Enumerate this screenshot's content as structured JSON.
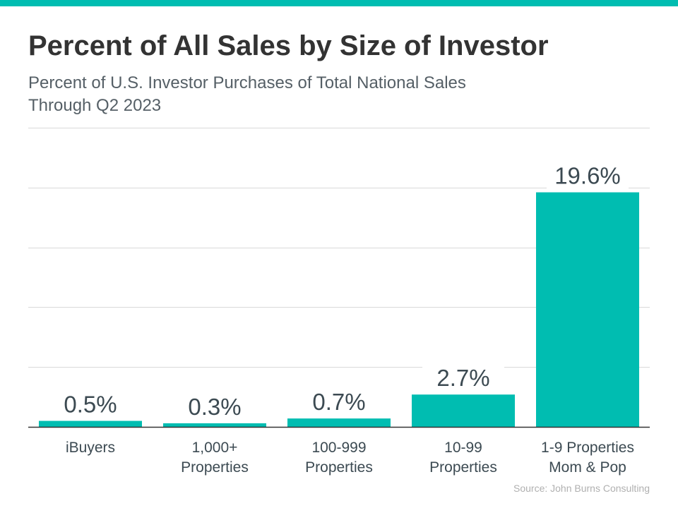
{
  "colors": {
    "accent": "#00bdb1",
    "title": "#333333",
    "subtitle": "#555f66",
    "text": "#3c4a52",
    "grid": "#d9d9d9",
    "source": "#b0b0b0"
  },
  "header": {
    "title": "Percent of All Sales by Size of Investor",
    "subtitle_line1": "Percent of U.S. Investor Purchases of Total National Sales",
    "subtitle_line2": "Through Q2 2023"
  },
  "footer": {
    "source": "Source: John Burns Consulting"
  },
  "chart_data": {
    "type": "bar",
    "title": "Percent of All Sales by Size of Investor",
    "subtitle": "Percent of U.S. Investor Purchases of Total National Sales Through Q2 2023",
    "categories": [
      [
        "iBuyers"
      ],
      [
        "1,000+",
        "Properties"
      ],
      [
        "100-999",
        "Properties"
      ],
      [
        "10-99",
        "Properties"
      ],
      [
        "1-9 Properties",
        "Mom & Pop"
      ]
    ],
    "values": [
      0.5,
      0.3,
      0.7,
      2.7,
      19.6
    ],
    "data_labels": [
      "0.5%",
      "0.3%",
      "0.7%",
      "2.7%",
      "19.6%"
    ],
    "ylim": [
      0,
      25
    ],
    "gridlines": [
      5,
      10,
      15,
      20,
      25
    ],
    "grid": true,
    "legend": false
  }
}
